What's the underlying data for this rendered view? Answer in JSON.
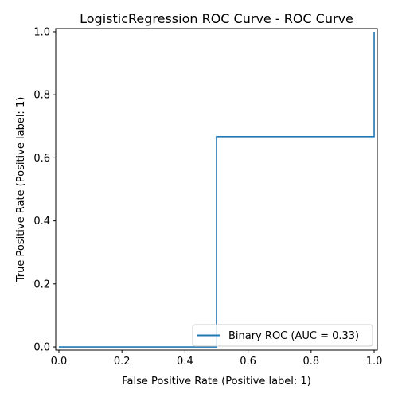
{
  "chart_data": {
    "type": "line",
    "title": "LogisticRegression ROC Curve - ROC Curve",
    "xlabel": "False Positive Rate (Positive label: 1)",
    "ylabel": "True Positive Rate (Positive label: 1)",
    "xlim": [
      -0.01,
      1.01
    ],
    "ylim": [
      -0.01,
      1.01
    ],
    "xticks": [
      0.0,
      0.2,
      0.4,
      0.6,
      0.8,
      1.0
    ],
    "yticks": [
      0.0,
      0.2,
      0.4,
      0.6,
      0.8,
      1.0
    ],
    "xtick_labels": [
      "0.0",
      "0.2",
      "0.4",
      "0.6",
      "0.8",
      "1.0"
    ],
    "ytick_labels": [
      "0.0",
      "0.2",
      "0.4",
      "0.6",
      "0.8",
      "1.0"
    ],
    "grid": false,
    "legend_position": "lower-right",
    "series": [
      {
        "name": "Binary ROC (AUC = 0.33)",
        "color": "#1f77b4",
        "drawstyle": "steps-post",
        "x": [
          0.0,
          0.0,
          0.5,
          0.5,
          1.0,
          1.0
        ],
        "y": [
          0.0,
          0.0,
          0.0,
          0.667,
          0.667,
          1.0
        ]
      }
    ]
  }
}
